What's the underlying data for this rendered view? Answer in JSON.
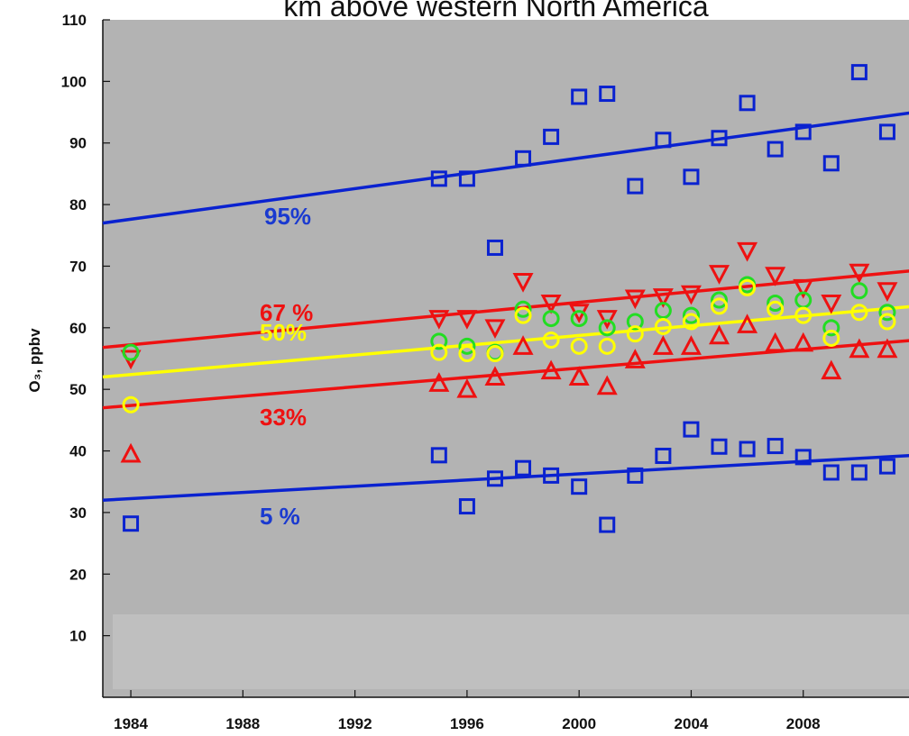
{
  "chart_data": {
    "type": "scatter",
    "title": "km above western North America",
    "y_label": "O₃, ppbv",
    "xlim": [
      1983,
      2012
    ],
    "ylim": [
      0,
      110
    ],
    "xticks": [
      1984,
      1988,
      1992,
      1996,
      2000,
      2004,
      2008
    ],
    "yticks": [
      10,
      20,
      30,
      40,
      50,
      60,
      70,
      80,
      90,
      100,
      110
    ],
    "series": [
      {
        "type": "scatter",
        "marker": "square",
        "color": "#0a22d0",
        "x": [
          1995,
          1996,
          1997,
          1998,
          1999,
          2000,
          2001,
          2002,
          2003,
          2004,
          2005,
          2006,
          2007,
          2008,
          2009,
          2010,
          2011
        ],
        "values": [
          84.2,
          84.2,
          73,
          87.5,
          91,
          97.5,
          98,
          83,
          90.5,
          84.5,
          90.8,
          96.5,
          89,
          91.8,
          86.7,
          101.5,
          91.8
        ]
      },
      {
        "type": "scatter",
        "marker": "triangle-down",
        "color": "#ee1111",
        "x": [
          1984,
          1995,
          1996,
          1997,
          1998,
          1999,
          2000,
          2001,
          2002,
          2003,
          2004,
          2005,
          2006,
          2007,
          2008,
          2009,
          2010,
          2011
        ],
        "values": [
          55,
          61.5,
          61.5,
          60,
          67.5,
          64,
          62.5,
          61.5,
          64.8,
          65,
          65.5,
          68.8,
          72.5,
          68.5,
          66.5,
          64,
          69,
          66
        ]
      },
      {
        "type": "scatter",
        "marker": "circle",
        "color": "#22dd22",
        "x": [
          1984,
          1995,
          1996,
          1997,
          1998,
          1999,
          2000,
          2001,
          2002,
          2003,
          2004,
          2005,
          2006,
          2007,
          2008,
          2009,
          2010,
          2011
        ],
        "values": [
          56,
          57.8,
          57,
          56,
          63,
          61.5,
          61.5,
          60,
          61,
          62.8,
          62,
          64.5,
          67,
          64,
          64.5,
          60,
          66,
          62.5
        ]
      },
      {
        "type": "scatter",
        "marker": "circle",
        "color": "#ffff00",
        "x": [
          1984,
          1995,
          1996,
          1997,
          1998,
          1999,
          2000,
          2001,
          2002,
          2003,
          2004,
          2005,
          2006,
          2007,
          2008,
          2009,
          2010,
          2011
        ],
        "values": [
          47.5,
          56,
          55.8,
          55.8,
          62,
          58,
          57,
          57,
          59,
          60.2,
          61,
          63.5,
          66.5,
          63,
          62,
          58.3,
          62.5,
          61
        ]
      },
      {
        "type": "scatter",
        "marker": "triangle-up",
        "color": "#ee1111",
        "x": [
          1984,
          1995,
          1996,
          1997,
          1998,
          1999,
          2000,
          2001,
          2002,
          2003,
          2004,
          2005,
          2006,
          2007,
          2008,
          2009,
          2010,
          2011
        ],
        "values": [
          39.5,
          51,
          50,
          52,
          57,
          53,
          52,
          50.5,
          54.8,
          57,
          57,
          58.7,
          60.5,
          57.5,
          57.5,
          53,
          56.5,
          56.5
        ]
      },
      {
        "type": "scatter",
        "marker": "square",
        "color": "#0a22d0",
        "x": [
          1984,
          1995,
          1996,
          1997,
          1998,
          1999,
          2000,
          2001,
          2002,
          2003,
          2004,
          2005,
          2006,
          2007,
          2008,
          2009,
          2010,
          2011
        ],
        "values": [
          28.2,
          39.3,
          31,
          35.5,
          37.2,
          36,
          34.2,
          28,
          36,
          39.2,
          43.5,
          40.7,
          40.3,
          40.8,
          39,
          36.5,
          36.5,
          37.5
        ]
      },
      {
        "type": "line",
        "color": "#0a22d0",
        "x": [
          1983,
          2012
        ],
        "values": [
          77,
          95
        ]
      },
      {
        "type": "line",
        "color": "#ee1111",
        "x": [
          1983,
          2012
        ],
        "values": [
          56.8,
          69.3
        ]
      },
      {
        "type": "line",
        "color": "#ffff00",
        "x": [
          1983,
          2012
        ],
        "values": [
          52,
          63.5
        ]
      },
      {
        "type": "line",
        "color": "#ee1111",
        "x": [
          1983,
          2012
        ],
        "values": [
          47,
          58
        ]
      },
      {
        "type": "line",
        "color": "#0a22d0",
        "x": [
          1983,
          2012
        ],
        "values": [
          32,
          39.3
        ]
      }
    ],
    "annotations": [
      {
        "text": "95%",
        "color": "#1a3ad0"
      },
      {
        "text": "67 %",
        "color": "#ee1111"
      },
      {
        "text": "50%",
        "color": "#ffff00"
      },
      {
        "text": "33%",
        "color": "#ee1111"
      },
      {
        "text": "5 %",
        "color": "#1a3ad0"
      }
    ]
  }
}
